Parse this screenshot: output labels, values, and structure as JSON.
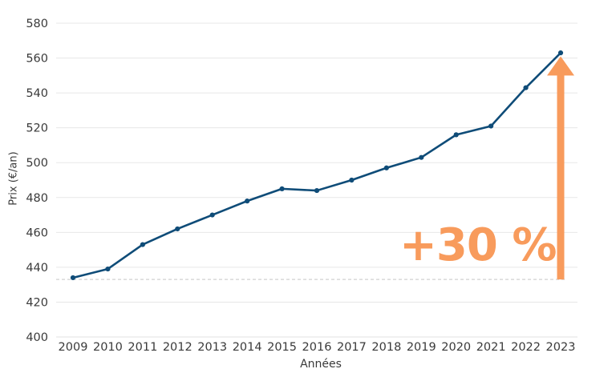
{
  "figure": {
    "background": "#ffffff"
  },
  "chart_data": {
    "type": "line",
    "title": "",
    "xlabel": "Années",
    "ylabel": "Prix (€/an)",
    "x": [
      2009,
      2010,
      2011,
      2012,
      2013,
      2014,
      2015,
      2016,
      2017,
      2018,
      2019,
      2020,
      2021,
      2022,
      2023
    ],
    "series": [
      {
        "name": "Prix (€/an)",
        "values": [
          434,
          439,
          453,
          462,
          470,
          478,
          485,
          484,
          490,
          497,
          503,
          516,
          521,
          543,
          563
        ]
      }
    ],
    "ylim": [
      400,
      580
    ],
    "ytick_step": 20,
    "yticks": [
      400,
      420,
      440,
      460,
      480,
      500,
      520,
      540,
      560,
      580
    ],
    "grid": "horizontal",
    "legend": "none",
    "baseline_dashed_value": 433,
    "annotation": {
      "text": "+30 %",
      "arrow_year": 2023,
      "arrow_from_value": 433,
      "arrow_to_value": 561
    }
  },
  "colors": {
    "line": "#0F4C78",
    "marker": "#0F4C78",
    "accent_orange": "#F89B5C",
    "grid": "#e7e7e7",
    "axis_line": "#e0e0e0",
    "dashed_baseline": "#d2d2d2",
    "tick_text": "#3a3a3a"
  }
}
